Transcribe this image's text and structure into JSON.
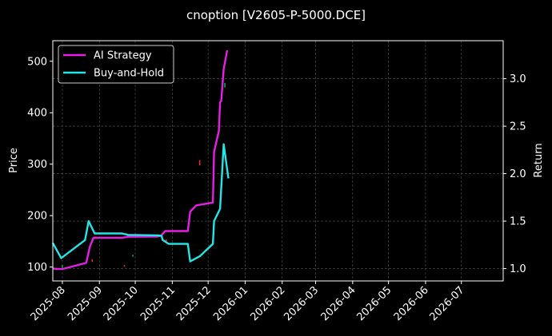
{
  "chart_data": {
    "type": "line",
    "title": "cnoption [V2605-P-5000.DCE]",
    "xlabel": "",
    "ylabel": "Price",
    "y2label": "Return",
    "x_ticks": [
      "2025-08",
      "2025-09",
      "2025-10",
      "2025-11",
      "2025-12",
      "2026-01",
      "2026-02",
      "2026-03",
      "2026-04",
      "2026-05",
      "2026-06",
      "2026-07"
    ],
    "x_range": [
      "2025-07-24",
      "2026-08-05"
    ],
    "ylim": [
      73,
      540
    ],
    "y_ticks": [
      100,
      200,
      300,
      400,
      500
    ],
    "y2lim": [
      0.87,
      3.4
    ],
    "y2_ticks": [
      1.0,
      1.5,
      2.0,
      2.5,
      3.0
    ],
    "y2_tick_labels": [
      "1.0",
      "1.5",
      "2.0",
      "2.5",
      "3.0"
    ],
    "grid": true,
    "legend_position": "top-left",
    "background": "#000000",
    "series": [
      {
        "name": "AI Strategy",
        "axis": "right",
        "color": "#e61ee6",
        "points": [
          [
            "2025-07-24",
            1.0
          ],
          [
            "2025-07-29",
            0.995
          ],
          [
            "2025-08-01",
            0.995
          ],
          [
            "2025-08-21",
            1.06
          ],
          [
            "2025-08-24",
            1.23
          ],
          [
            "2025-08-27",
            1.325
          ],
          [
            "2025-09-20",
            1.325
          ],
          [
            "2025-09-25",
            1.335
          ],
          [
            "2025-10-20",
            1.337
          ],
          [
            "2025-10-23",
            1.35
          ],
          [
            "2025-10-26",
            1.395
          ],
          [
            "2025-11-14",
            1.395
          ],
          [
            "2025-11-16",
            1.6
          ],
          [
            "2025-11-21",
            1.665
          ],
          [
            "2025-12-05",
            1.695
          ],
          [
            "2025-12-06",
            2.23
          ],
          [
            "2025-12-10",
            2.45
          ],
          [
            "2025-12-11",
            2.75
          ],
          [
            "2025-12-12",
            2.77
          ],
          [
            "2025-12-14",
            3.1
          ],
          [
            "2025-12-17",
            3.3
          ]
        ]
      },
      {
        "name": "Buy-and-Hold",
        "axis": "right",
        "color": "#22e6e6",
        "points": [
          [
            "2025-07-24",
            1.27
          ],
          [
            "2025-07-31",
            1.11
          ],
          [
            "2025-08-20",
            1.3
          ],
          [
            "2025-08-23",
            1.5
          ],
          [
            "2025-08-28",
            1.37
          ],
          [
            "2025-09-20",
            1.37
          ],
          [
            "2025-09-25",
            1.355
          ],
          [
            "2025-10-20",
            1.35
          ],
          [
            "2025-10-23",
            1.345
          ],
          [
            "2025-10-24",
            1.3
          ],
          [
            "2025-10-29",
            1.26
          ],
          [
            "2025-11-14",
            1.26
          ],
          [
            "2025-11-16",
            1.075
          ],
          [
            "2025-11-24",
            1.13
          ],
          [
            "2025-12-05",
            1.26
          ],
          [
            "2025-12-06",
            1.5
          ],
          [
            "2025-12-11",
            1.63
          ],
          [
            "2025-12-14",
            2.31
          ],
          [
            "2025-12-18",
            1.95
          ]
        ]
      }
    ],
    "price_marks": [
      {
        "date": "2025-08-01",
        "low": 97,
        "high": 104,
        "color": "#00b050"
      },
      {
        "date": "2025-08-26",
        "low": 110,
        "high": 115,
        "color": "#ff2020"
      },
      {
        "date": "2025-09-22",
        "low": 101,
        "high": 104,
        "color": "#ff2020"
      },
      {
        "date": "2025-09-29",
        "low": 120,
        "high": 124,
        "color": "#00b050"
      },
      {
        "date": "2025-10-27",
        "low": 150,
        "high": 154,
        "color": "#ff2020"
      },
      {
        "date": "2025-11-24",
        "low": 298,
        "high": 308,
        "color": "#ff2020"
      },
      {
        "date": "2025-12-15",
        "low": 449,
        "high": 458,
        "color": "#00b050"
      }
    ]
  }
}
